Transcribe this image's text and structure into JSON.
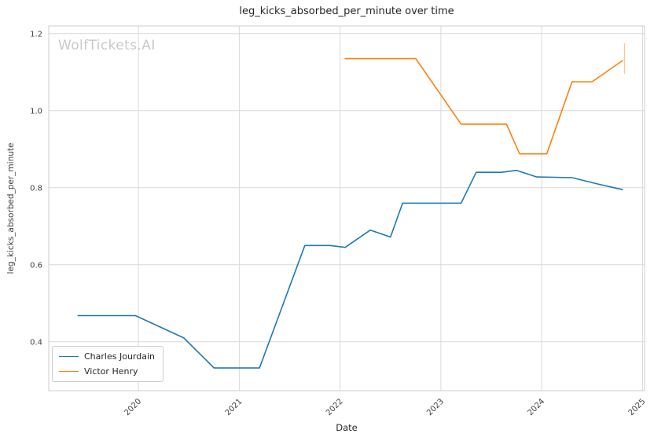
{
  "figure": {
    "watermark": "WolfTickets.AI"
  },
  "chart_data": {
    "type": "line",
    "title": "leg_kicks_absorbed_per_minute over time",
    "xlabel": "Date",
    "ylabel": "leg_kicks_absorbed_per_minute",
    "xlim": [
      2019.11,
      2025.02
    ],
    "ylim": [
      0.273,
      1.22
    ],
    "x_ticks": [
      2020,
      2021,
      2022,
      2023,
      2024,
      2025
    ],
    "y_ticks": [
      0.4,
      0.6,
      0.8,
      1.0,
      1.2
    ],
    "grid": true,
    "grid_color": "#d9d9d9",
    "border_color": "#cccccc",
    "legend_position": "lower left",
    "legend_entries": [
      "Charles Jourdain",
      "Victor Henry"
    ],
    "series": [
      {
        "name": "Charles Jourdain",
        "color": "#1f77b4",
        "x": [
          2019.4,
          2019.97,
          2020.45,
          2020.75,
          2021.2,
          2021.65,
          2021.9,
          2022.05,
          2022.3,
          2022.5,
          2022.62,
          2023.2,
          2023.35,
          2023.6,
          2023.75,
          2023.95,
          2024.3,
          2024.55,
          2024.8
        ],
        "y": [
          0.468,
          0.468,
          0.41,
          0.332,
          0.332,
          0.65,
          0.65,
          0.645,
          0.69,
          0.672,
          0.76,
          0.76,
          0.84,
          0.84,
          0.845,
          0.828,
          0.826,
          0.81,
          0.795
        ]
      },
      {
        "name": "Victor Henry",
        "color": "#ff7f0e",
        "x": [
          2022.05,
          2022.75,
          2023.2,
          2023.65,
          2023.78,
          2024.05,
          2024.3,
          2024.5,
          2024.8
        ],
        "y": [
          1.135,
          1.135,
          0.965,
          0.965,
          0.888,
          0.888,
          1.075,
          1.075,
          1.13
        ]
      }
    ],
    "end_tick": {
      "x": 2024.82,
      "y0": 1.095,
      "y1": 1.175,
      "color": "#ffa85c"
    }
  }
}
